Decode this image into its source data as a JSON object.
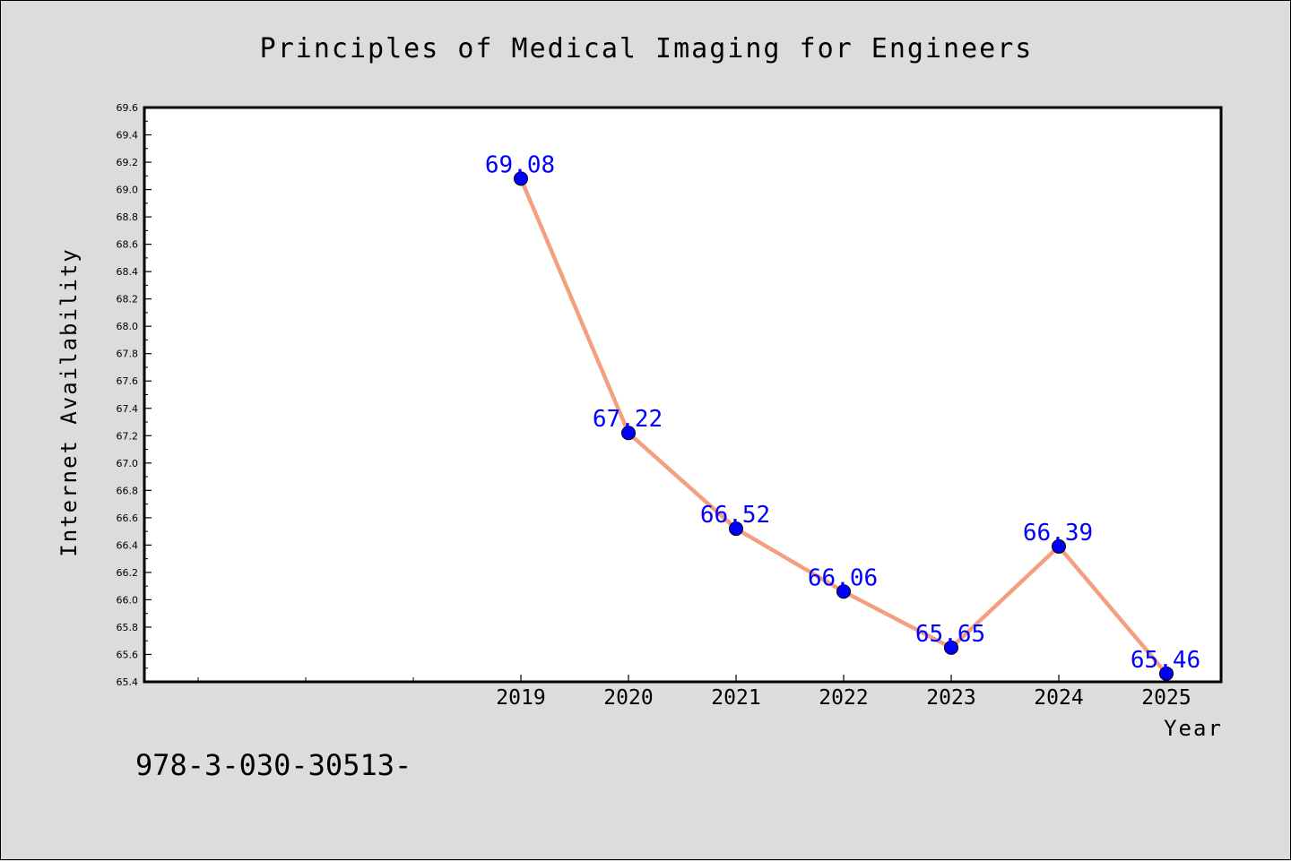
{
  "chart_data": {
    "type": "line",
    "title": "Principles of Medical Imaging for Engineers",
    "xlabel": "Year",
    "ylabel": "Internet Availability",
    "categories": [
      "2019",
      "2020",
      "2021",
      "2022",
      "2023",
      "2024",
      "2025"
    ],
    "values": [
      69.08,
      67.22,
      66.52,
      66.06,
      65.65,
      66.39,
      65.46
    ],
    "value_labels": [
      "69.08",
      "67.22",
      "66.52",
      "66.06",
      "65.65",
      "66.39",
      "65.46"
    ],
    "ylim": [
      65.4,
      69.6
    ],
    "yticks": [
      "65.4",
      "65.6",
      "65.8",
      "66.0",
      "66.2",
      "66.4",
      "66.6",
      "66.8",
      "67.0",
      "67.2",
      "67.4",
      "67.6",
      "67.8",
      "68.0",
      "68.2",
      "68.4",
      "68.6",
      "68.8",
      "69.0",
      "69.2",
      "69.4",
      "69.6"
    ],
    "grid": false,
    "line_color": "#f4a080",
    "marker_color": "#0000ff",
    "label_color": "#0000ff"
  },
  "footnote": "978-3-030-30513-"
}
